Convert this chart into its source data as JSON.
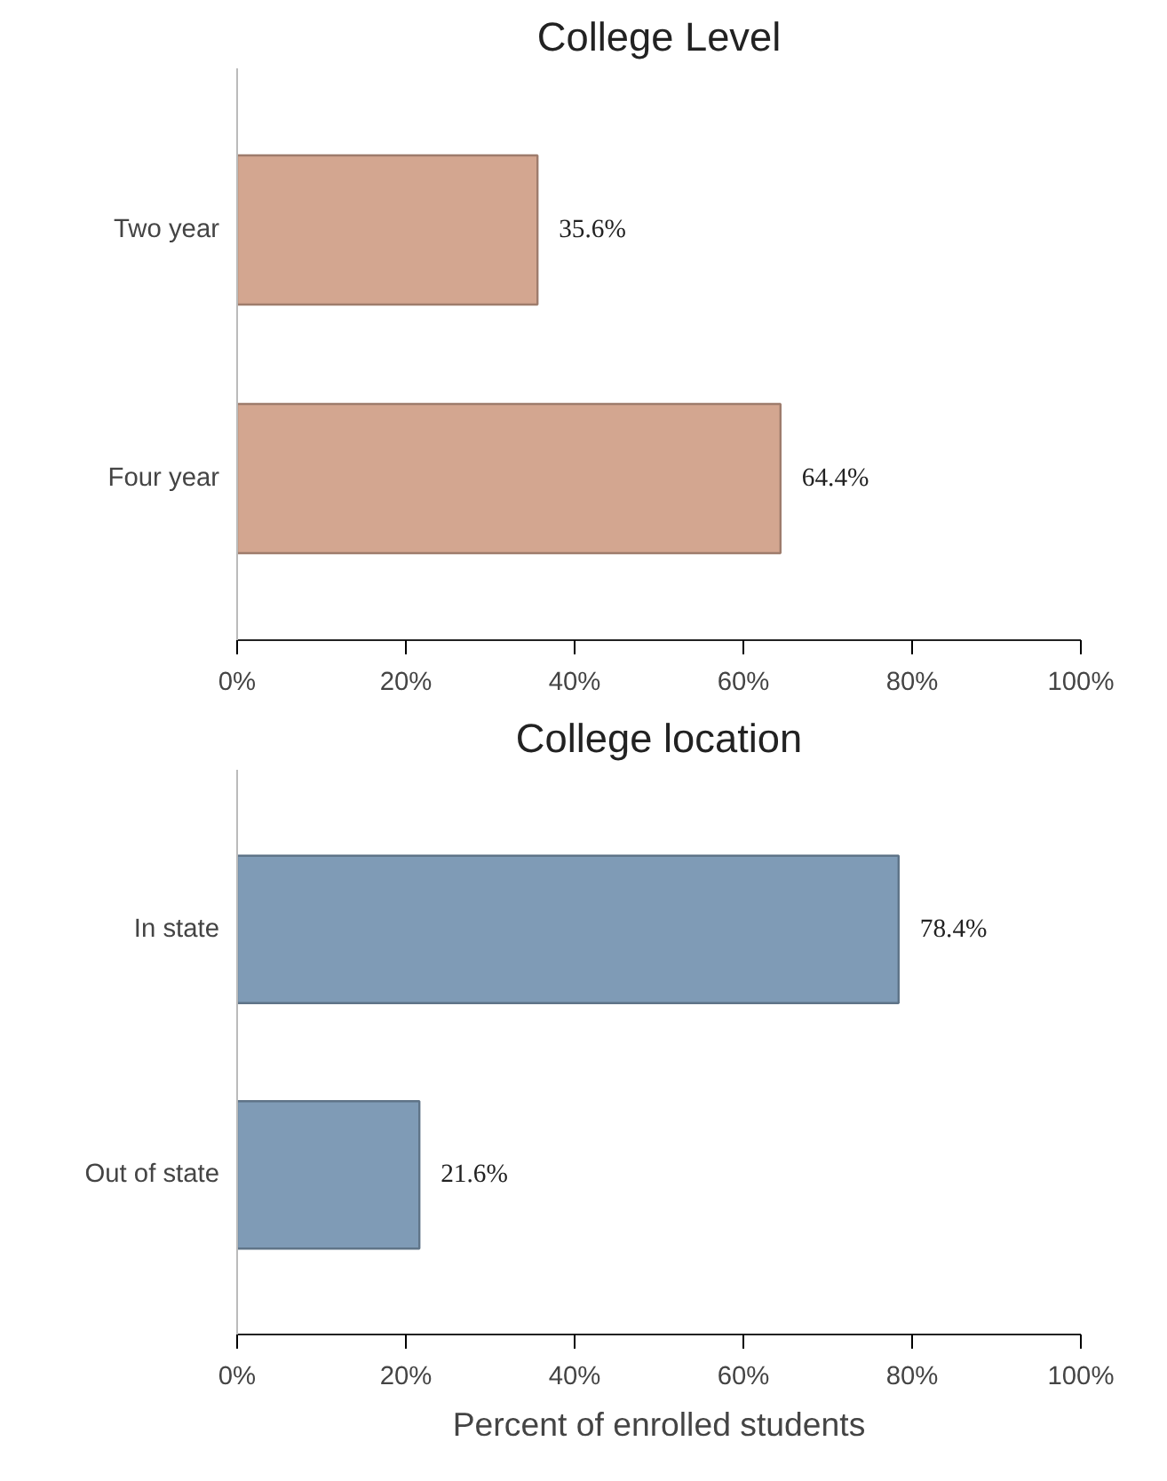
{
  "chart_data": [
    {
      "type": "bar",
      "orientation": "horizontal",
      "title": "College Level",
      "categories": [
        "Two year",
        "Four year"
      ],
      "values": [
        35.6,
        64.4
      ],
      "value_labels": [
        "35.6%",
        "64.4%"
      ],
      "color": "#d3a690",
      "xlim": [
        0,
        100
      ],
      "xticks": [
        {
          "value": 0,
          "label": "0%"
        },
        {
          "value": 20,
          "label": "20%"
        },
        {
          "value": 40,
          "label": "40%"
        },
        {
          "value": 60,
          "label": "60%"
        },
        {
          "value": 80,
          "label": "80%"
        },
        {
          "value": 100,
          "label": "100%"
        }
      ]
    },
    {
      "type": "bar",
      "orientation": "horizontal",
      "title": "College location",
      "xlabel": "Percent of enrolled students",
      "categories": [
        "In state",
        "Out of state"
      ],
      "values": [
        78.4,
        21.6
      ],
      "value_labels": [
        "78.4%",
        "21.6%"
      ],
      "color": "#7f9bb6",
      "xlim": [
        0,
        100
      ],
      "xticks": [
        {
          "value": 0,
          "label": "0%"
        },
        {
          "value": 20,
          "label": "20%"
        },
        {
          "value": 40,
          "label": "40%"
        },
        {
          "value": 60,
          "label": "60%"
        },
        {
          "value": 80,
          "label": "80%"
        },
        {
          "value": 100,
          "label": "100%"
        }
      ]
    }
  ]
}
